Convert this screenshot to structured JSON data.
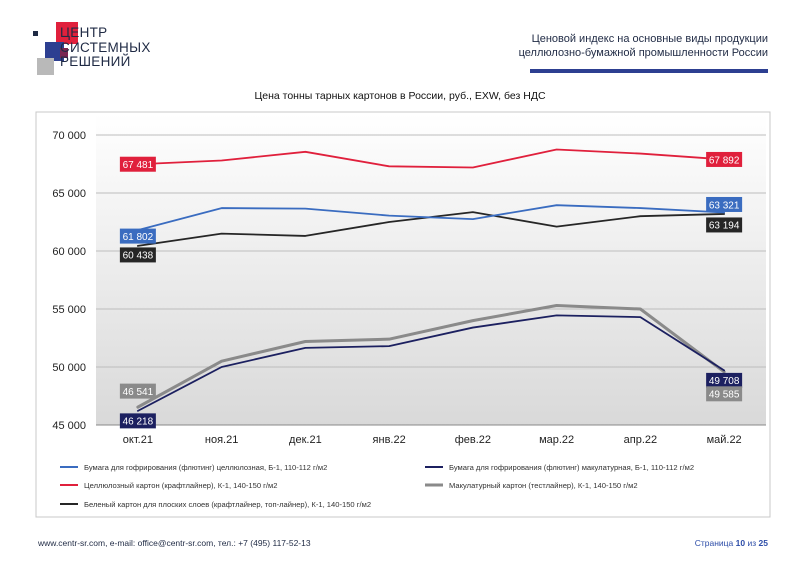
{
  "logo": {
    "line1": "ЦЕНТР",
    "line2": "СИСТЕМНЫХ",
    "line3": "РЕШЕНИЙ"
  },
  "header": {
    "title_line1": "Ценовой индекс на основные виды продукции",
    "title_line2": "целлюлозно-бумажной промышленности России"
  },
  "chart_data": {
    "type": "line",
    "title": "Цена тонны тарных картонов в России, руб., EXW, без НДС",
    "categories": [
      "окт.21",
      "ноя.21",
      "дек.21",
      "янв.22",
      "фев.22",
      "мар.22",
      "апр.22",
      "май.22"
    ],
    "ylim": [
      45000,
      70000
    ],
    "yticks": [
      "45 000",
      "50 000",
      "55 000",
      "60 000",
      "65 000",
      "70 000"
    ],
    "ytick_values": [
      45000,
      50000,
      55000,
      60000,
      65000,
      70000
    ],
    "grid": true,
    "legend_position": "bottom",
    "series": [
      {
        "name": "Бумага для гофрирования (флютинг) целлюлозная, Б-1, 110-112 г/м2",
        "color": "#3a6cc0",
        "values": [
          61802,
          63700,
          63650,
          63050,
          62750,
          63950,
          63700,
          63321
        ],
        "start_label": "61 802",
        "end_label": "63 321"
      },
      {
        "name": "Бумага для гофрирования (флютинг) макулатурная, Б-1, 110-112 г/м2",
        "color": "#1c2060",
        "values": [
          46218,
          50000,
          51650,
          51800,
          53400,
          54450,
          54300,
          49708
        ],
        "start_label": "46 218",
        "end_label": "49 708"
      },
      {
        "name": "Целлюлозный картон (крафтлайнер), К-1, 140-150 г/м2",
        "color": "#e0203c",
        "values": [
          67481,
          67800,
          68550,
          67300,
          67200,
          68750,
          68400,
          67892
        ],
        "start_label": "67 481",
        "end_label": "67 892"
      },
      {
        "name": "Макулатурный картон (тестлайнер), К-1, 140-150 г/м2",
        "color": "#8a8a8a",
        "values": [
          46541,
          50500,
          52200,
          52400,
          54000,
          55300,
          55000,
          49585
        ],
        "start_label": "46 541",
        "end_label": "49 585"
      },
      {
        "name": "Беленый картон для плоских слоев (крафтлайнер, топ-лайнер), К-1, 140-150 г/м2",
        "color": "#262626",
        "values": [
          60438,
          61500,
          61300,
          62500,
          63350,
          62100,
          63000,
          63194
        ],
        "start_label": "60 438",
        "end_label": "63 194"
      }
    ]
  },
  "footer": {
    "contacts": "www.centr-sr.com, e-mail: office@centr-sr.com, тел.: +7 (495) 117-52-13",
    "page_word": "Страница",
    "page_num": "10",
    "of_word": "из",
    "page_total": "25"
  }
}
